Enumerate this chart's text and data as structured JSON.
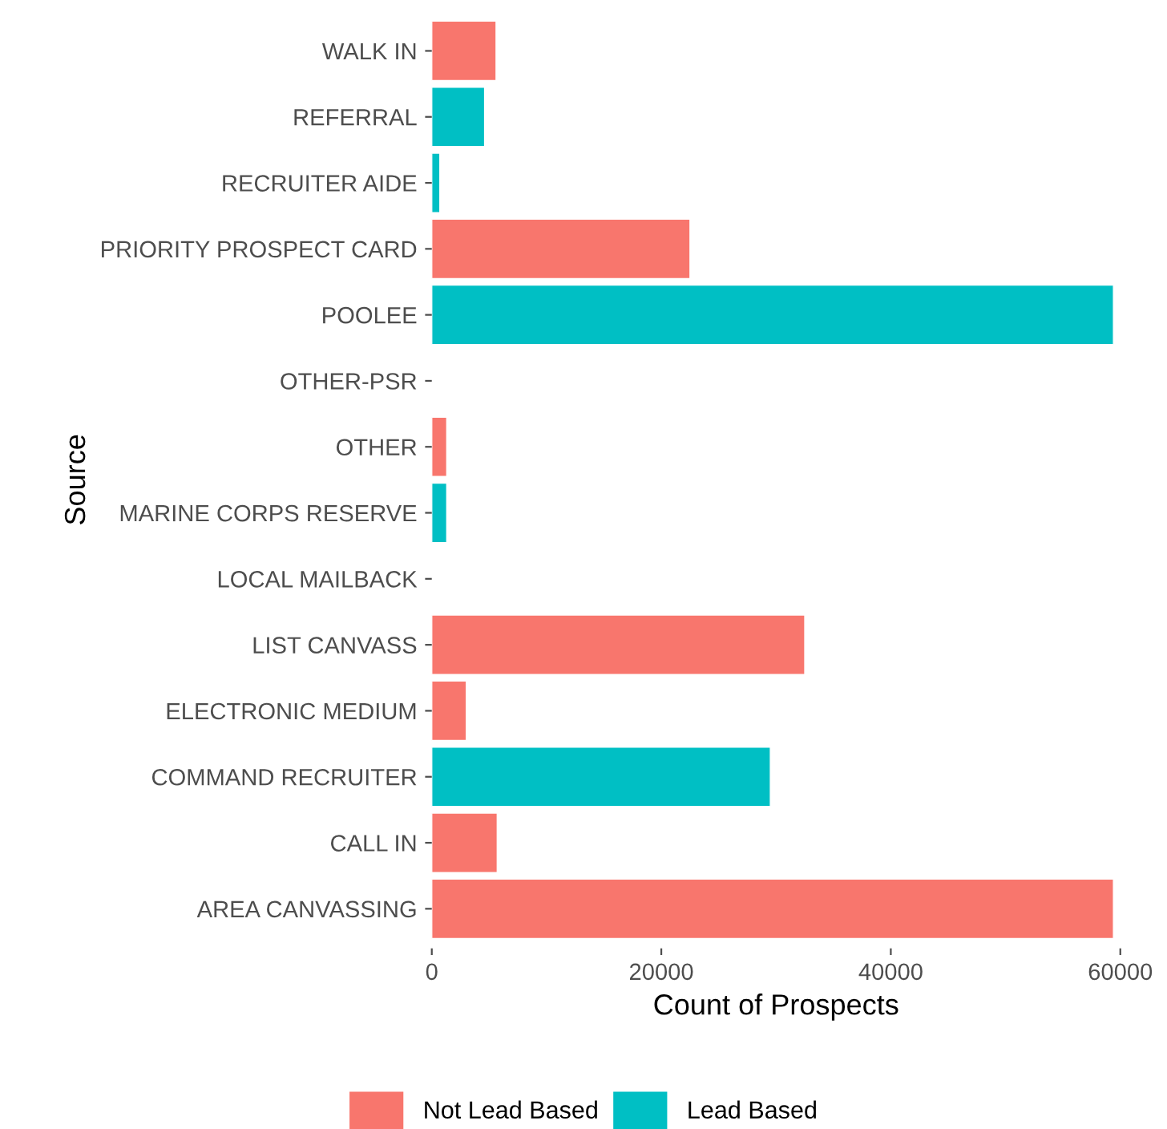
{
  "chart_data": {
    "type": "bar",
    "orientation": "horizontal",
    "xlabel": "Count of Prospects",
    "ylabel": "Source",
    "categories": [
      "WALK IN",
      "REFERRAL",
      "RECRUITER AIDE",
      "PRIORITY PROSPECT CARD",
      "POOLEE",
      "OTHER-PSR",
      "OTHER",
      "MARINE CORPS RESERVE",
      "LOCAL MAILBACK",
      "LIST CANVASS",
      "ELECTRONIC MEDIUM",
      "COMMAND RECRUITER",
      "CALL IN",
      "AREA CANVASSING"
    ],
    "series": [
      {
        "name": "Not Lead Based",
        "color": "#f8766d",
        "values": [
          5600,
          null,
          null,
          22500,
          null,
          null,
          1300,
          null,
          null,
          32500,
          3000,
          null,
          5700,
          59400
        ]
      },
      {
        "name": "Lead Based",
        "color": "#00bfc4",
        "values": [
          null,
          4600,
          700,
          null,
          59400,
          null,
          null,
          1300,
          null,
          null,
          null,
          29500,
          null,
          null
        ]
      }
    ],
    "xlim": [
      0,
      60000
    ],
    "xticks": [
      0,
      20000,
      40000,
      60000
    ],
    "grid": false,
    "legend": "bottom"
  }
}
